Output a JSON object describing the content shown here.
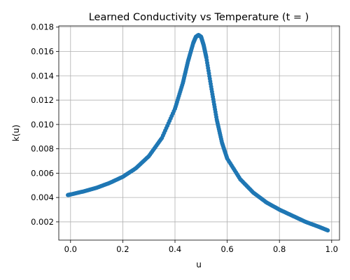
{
  "chart_data": {
    "type": "scatter",
    "title": "Learned Conductivity vs Temperature (t = )",
    "xlabel": "u",
    "ylabel": "k(u)",
    "xlim": [
      -0.045,
      1.03
    ],
    "ylim": [
      0.0005,
      0.0181
    ],
    "grid": true,
    "color": "#1f77b4",
    "x_ticks": [
      {
        "value": 0.0,
        "label": "0.0"
      },
      {
        "value": 0.2,
        "label": "0.2"
      },
      {
        "value": 0.4,
        "label": "0.4"
      },
      {
        "value": 0.6,
        "label": "0.6"
      },
      {
        "value": 0.8,
        "label": "0.8"
      },
      {
        "value": 1.0,
        "label": "1.0"
      }
    ],
    "y_ticks": [
      {
        "value": 0.002,
        "label": "0.002"
      },
      {
        "value": 0.004,
        "label": "0.004"
      },
      {
        "value": 0.006,
        "label": "0.006"
      },
      {
        "value": 0.008,
        "label": "0.008"
      },
      {
        "value": 0.01,
        "label": "0.010"
      },
      {
        "value": 0.012,
        "label": "0.012"
      },
      {
        "value": 0.014,
        "label": "0.014"
      },
      {
        "value": 0.016,
        "label": "0.016"
      },
      {
        "value": 0.018,
        "label": "0.018"
      }
    ],
    "series": [
      {
        "x": [
          -0.01,
          0.0,
          0.05,
          0.1,
          0.15,
          0.2,
          0.25,
          0.3,
          0.35,
          0.4,
          0.43,
          0.45,
          0.47,
          0.48,
          0.49,
          0.5,
          0.51,
          0.52,
          0.54,
          0.56,
          0.58,
          0.6,
          0.65,
          0.7,
          0.75,
          0.8,
          0.85,
          0.9,
          0.95,
          0.985
        ],
        "y": [
          0.0042,
          0.00425,
          0.0045,
          0.0048,
          0.0052,
          0.0057,
          0.0064,
          0.0074,
          0.0089,
          0.0113,
          0.0134,
          0.0152,
          0.0167,
          0.0172,
          0.01735,
          0.0172,
          0.0165,
          0.0155,
          0.0129,
          0.0104,
          0.0085,
          0.0072,
          0.0055,
          0.0044,
          0.0036,
          0.003,
          0.0025,
          0.002,
          0.0016,
          0.0013
        ]
      }
    ]
  }
}
